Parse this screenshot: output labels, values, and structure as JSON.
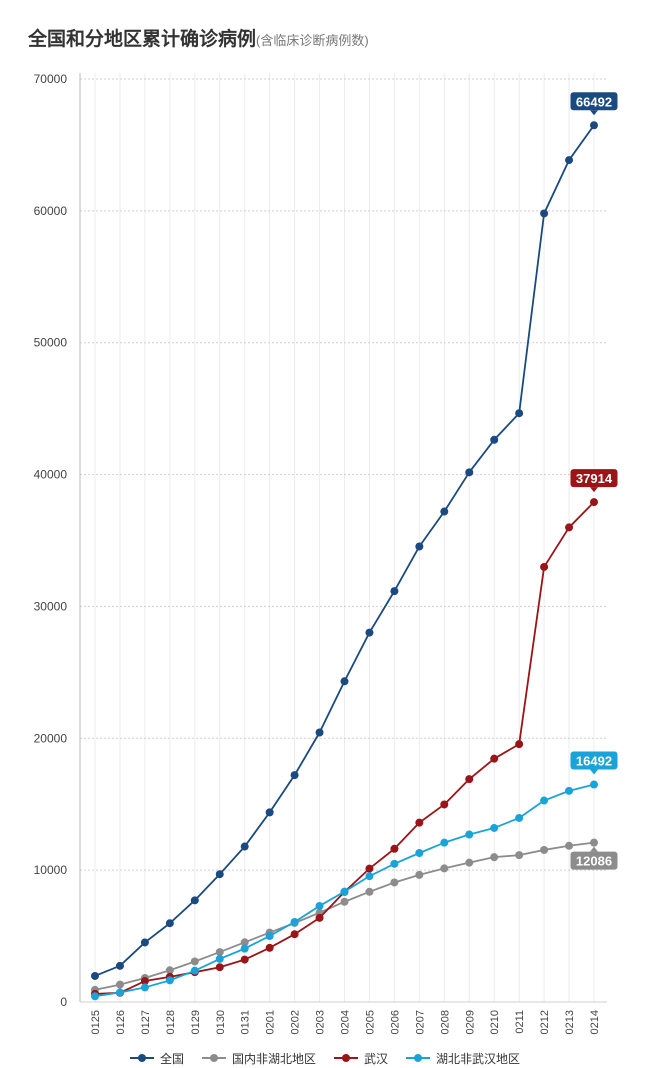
{
  "title": "全国和分地区累计确诊病例",
  "subtitle": "(含临床诊断病例数)",
  "chart_data": {
    "type": "line",
    "categories": [
      "0125",
      "0126",
      "0127",
      "0128",
      "0129",
      "0130",
      "0131",
      "0201",
      "0202",
      "0203",
      "0204",
      "0205",
      "0206",
      "0207",
      "0208",
      "0209",
      "0210",
      "0211",
      "0212",
      "0213",
      "0214"
    ],
    "ylim": [
      0,
      70000
    ],
    "yticks": [
      0,
      10000,
      20000,
      30000,
      40000,
      50000,
      60000,
      70000
    ],
    "grid": true,
    "legend_position": "bottom",
    "series": [
      {
        "name": "全国",
        "color": "#1a4a80",
        "values": [
          1975,
          2744,
          4515,
          5974,
          7711,
          9692,
          11791,
          14380,
          17205,
          20438,
          24324,
          28018,
          31161,
          34546,
          37198,
          40171,
          42638,
          44653,
          59804,
          63851,
          66492
        ],
        "end_label": "66492"
      },
      {
        "name": "国内非湖北地区",
        "color": "#8c8c8c",
        "values": [
          923,
          1321,
          1820,
          2406,
          3074,
          3787,
          4527,
          5265,
          5993,
          6769,
          7604,
          8357,
          9066,
          9642,
          10131,
          10567,
          10985,
          11138,
          11532,
          11847,
          12086
        ],
        "end_label": "12086"
      },
      {
        "name": "武汉",
        "color": "#9a1418",
        "values": [
          618,
          698,
          1590,
          1905,
          2261,
          2639,
          3215,
          4109,
          5142,
          6384,
          8351,
          10117,
          11618,
          13603,
          14982,
          16902,
          18454,
          19558,
          32994,
          35991,
          37914
        ],
        "end_label": "37914"
      },
      {
        "name": "湖北非武汉地区",
        "color": "#1aa3d9",
        "values": [
          434,
          725,
          1105,
          1643,
          2376,
          3266,
          4049,
          5006,
          6070,
          7285,
          8369,
          9544,
          10477,
          11301,
          12085,
          12702,
          13199,
          13957,
          15278,
          16013,
          16492
        ],
        "end_label": "16492"
      }
    ]
  }
}
